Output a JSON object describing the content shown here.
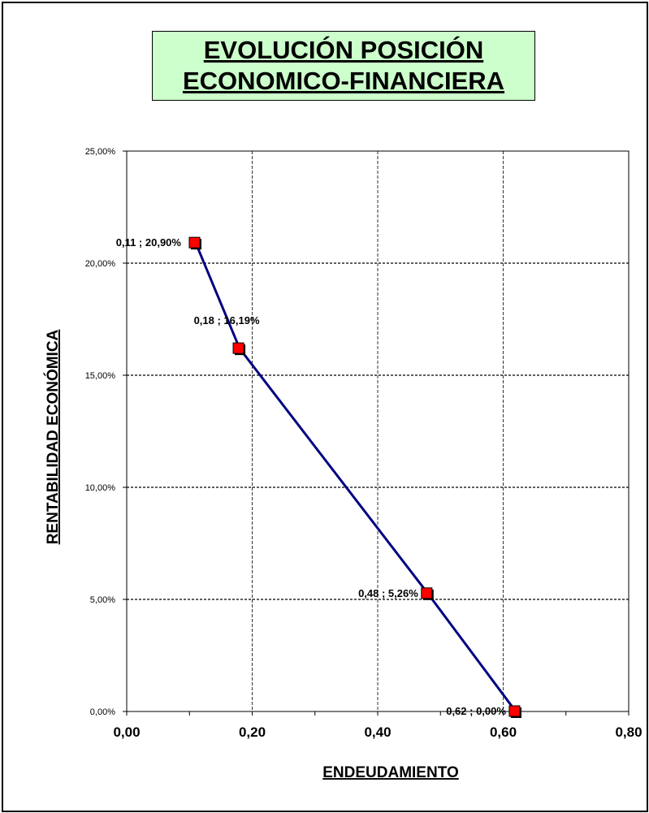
{
  "title": {
    "line1": "EVOLUCIÓN POSICIÓN",
    "line2": "ECONOMICO-FINANCIERA"
  },
  "colors": {
    "title_bg": "#ccffcc",
    "series_line": "#000080",
    "marker_fill": "#ff0000",
    "marker_shadow": "#000000"
  },
  "chart_data": {
    "type": "line",
    "xlabel": "ENDEUDAMIENTO",
    "ylabel": "RENTABILIDAD ECONÓMICA",
    "xlim": [
      0,
      0.8
    ],
    "ylim": [
      0,
      25
    ],
    "x_ticks": [
      0,
      0.2,
      0.4,
      0.6,
      0.8
    ],
    "x_tick_labels": [
      "0,00",
      "0,20",
      "0,40",
      "0,60",
      "0,80"
    ],
    "y_ticks": [
      0,
      5,
      10,
      15,
      20,
      25
    ],
    "y_tick_labels": [
      "0,00%",
      "5,00%",
      "10,00%",
      "15,00%",
      "20,00%",
      "25,00%"
    ],
    "grid": true,
    "legend": "none",
    "series": [
      {
        "x": [
          0.11,
          0.18,
          0.48,
          0.62
        ],
        "y": [
          20.9,
          16.19,
          5.26,
          0.0
        ],
        "labels": [
          "0,11 ; 20,90%",
          "0,18 ; 16,19%",
          "0,48 ; 5,26%",
          "0,62 ; 0,00%"
        ]
      }
    ]
  }
}
